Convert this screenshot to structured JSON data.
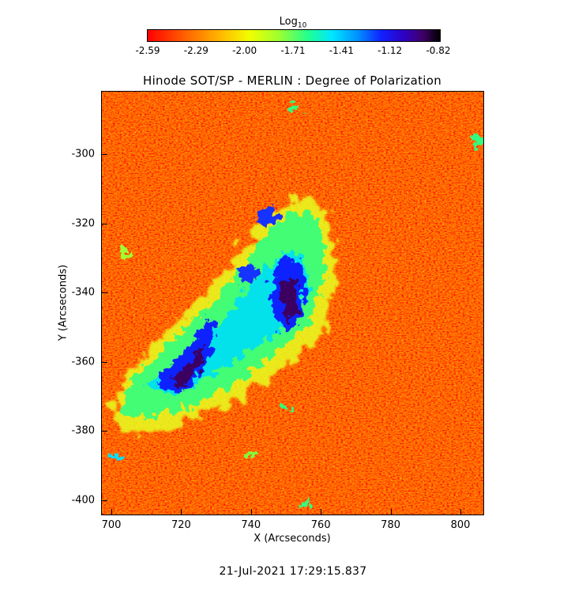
{
  "colorbar": {
    "title": "Log",
    "title_sub": "10",
    "ticks": [
      "-2.59",
      "-2.29",
      "-2.00",
      "-1.71",
      "-1.41",
      "-1.12",
      "-0.82"
    ]
  },
  "plot": {
    "title": "Hinode SOT/SP - MERLIN : Degree of Polarization",
    "xlabel": "X (Arcseconds)",
    "ylabel": "Y (Arcseconds)",
    "xticks": [
      "700",
      "720",
      "740",
      "760",
      "780",
      "800"
    ],
    "yticks": [
      "-300",
      "-320",
      "-340",
      "-360",
      "-380",
      "-400"
    ]
  },
  "timestamp": "21-Jul-2021 17:29:15.837",
  "colors": {
    "background_low": "#ff3000",
    "mid": "#00ff80",
    "high": "#1020ff",
    "peak": "#3a0050"
  }
}
